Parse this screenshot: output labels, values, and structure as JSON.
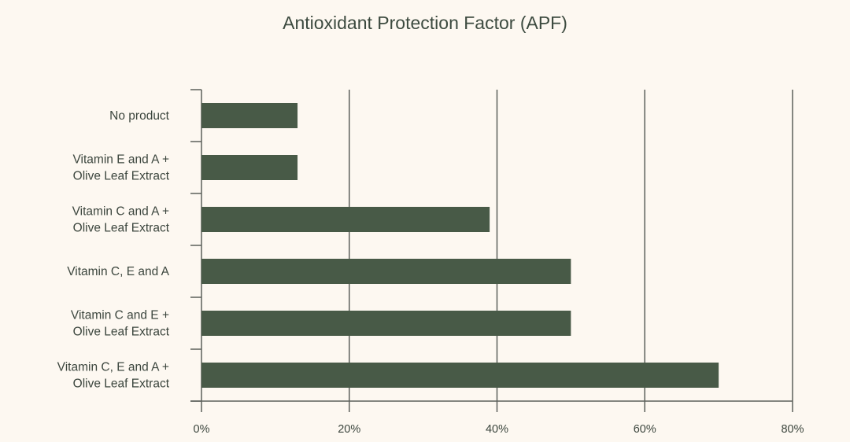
{
  "chart_data": {
    "type": "bar",
    "orientation": "horizontal",
    "title": "Antioxidant Protection Factor (APF)",
    "categories": [
      [
        "No product"
      ],
      [
        "Vitamin E and A +",
        "Olive Leaf Extract"
      ],
      [
        "Vitamin C and A +",
        "Olive Leaf Extract"
      ],
      [
        "Vitamin C, E and A"
      ],
      [
        "Vitamin C and E +",
        "Olive Leaf Extract"
      ],
      [
        "Vitamin C, E and A +",
        "Olive Leaf Extract"
      ]
    ],
    "values": [
      13,
      13,
      39,
      50,
      50,
      70
    ],
    "xlim": [
      0,
      80
    ],
    "xticks": [
      0,
      20,
      40,
      60,
      80
    ],
    "xtick_labels": [
      "0%",
      "20%",
      "40%",
      "60%",
      "80%"
    ],
    "xlabel": "",
    "ylabel": "",
    "grid": "vertical",
    "legend": "none",
    "colors": {
      "bar": "#485a47",
      "grid": "#5c605b",
      "background": "#fdf8f1",
      "text": "#3b453d"
    }
  }
}
